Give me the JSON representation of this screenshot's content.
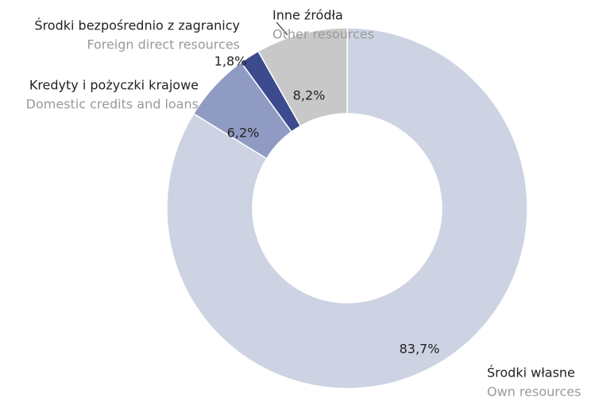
{
  "chart_data": {
    "type": "donut",
    "categories": [
      "Środki własne",
      "Kredyty i pożyczki krajowe",
      "Środki bezpośrednio z zagranicy",
      "Inne źródła"
    ],
    "categories_en": [
      "Own resources",
      "Domestic credits and loans",
      "Foreign direct resources",
      "Other resources"
    ],
    "values": [
      83.7,
      6.2,
      1.8,
      8.2
    ],
    "value_labels": [
      "83,7%",
      "6,2%",
      "1,8%",
      "8,2%"
    ],
    "colors": [
      "#cdd3e3",
      "#8f9bc3",
      "#3c4a8e",
      "#c8c8c8"
    ]
  }
}
